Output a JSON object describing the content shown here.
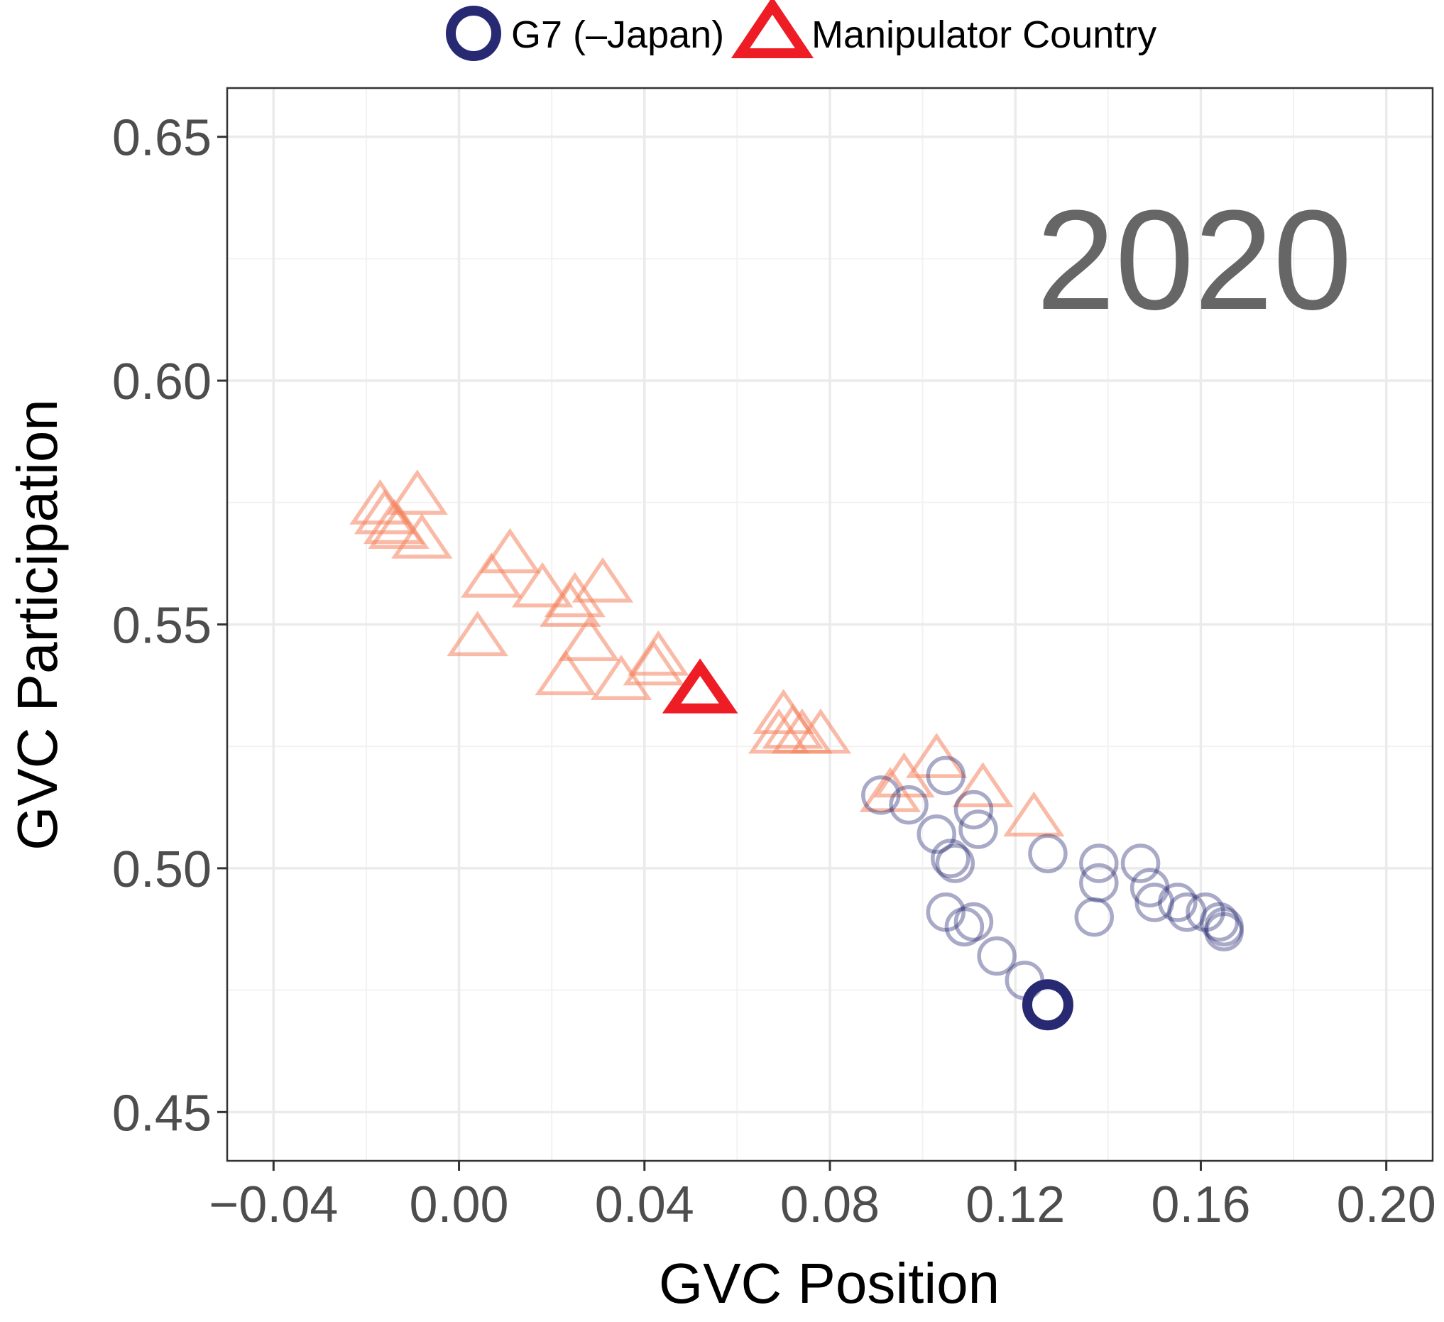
{
  "chart_data": {
    "type": "scatter",
    "title": "",
    "annotation": "2020",
    "xlabel": "GVC Position",
    "ylabel": "GVC Participation",
    "xlim": [
      -0.05,
      0.21
    ],
    "ylim": [
      0.44,
      0.66
    ],
    "x_ticks": [
      -0.04,
      0.0,
      0.04,
      0.08,
      0.12,
      0.16,
      0.2
    ],
    "x_tick_labels": [
      "−0.04",
      "0.00",
      "0.04",
      "0.08",
      "0.12",
      "0.16",
      "0.20"
    ],
    "y_ticks": [
      0.45,
      0.5,
      0.55,
      0.6,
      0.65
    ],
    "y_tick_labels": [
      "0.45",
      "0.50",
      "0.55",
      "0.60",
      "0.65"
    ],
    "grid": true,
    "legend_position": "top",
    "legend": [
      {
        "label": "G7 (–Japan)",
        "marker": "circle",
        "color": "#272a73"
      },
      {
        "label": "Manipulator Country",
        "marker": "triangle",
        "color": "#ee1c25"
      }
    ],
    "series": [
      {
        "name": "Manipulator Country",
        "marker": "triangle",
        "color": "#f4845f",
        "alpha": 0.55,
        "points": [
          [
            -0.017,
            0.574
          ],
          [
            -0.016,
            0.572
          ],
          [
            -0.014,
            0.57
          ],
          [
            -0.013,
            0.569
          ],
          [
            -0.009,
            0.576
          ],
          [
            -0.008,
            0.567
          ],
          [
            0.004,
            0.547
          ],
          [
            0.007,
            0.559
          ],
          [
            0.011,
            0.564
          ],
          [
            0.018,
            0.557
          ],
          [
            0.024,
            0.553
          ],
          [
            0.025,
            0.555
          ],
          [
            0.023,
            0.539
          ],
          [
            0.028,
            0.546
          ],
          [
            0.031,
            0.558
          ],
          [
            0.035,
            0.538
          ],
          [
            0.042,
            0.541
          ],
          [
            0.043,
            0.543
          ],
          [
            0.07,
            0.531
          ],
          [
            0.072,
            0.528
          ],
          [
            0.069,
            0.527
          ],
          [
            0.074,
            0.527
          ],
          [
            0.078,
            0.527
          ],
          [
            0.093,
            0.515
          ],
          [
            0.096,
            0.518
          ],
          [
            0.103,
            0.522
          ],
          [
            0.113,
            0.516
          ],
          [
            0.124,
            0.51
          ]
        ]
      },
      {
        "name": "Manipulator Country (highlighted)",
        "marker": "triangle",
        "color": "#ee1c25",
        "alpha": 1,
        "highlight": true,
        "points": [
          [
            0.052,
            0.536
          ]
        ]
      },
      {
        "name": "G7 (–Japan)",
        "marker": "circle",
        "color": "#272a73",
        "alpha": 0.4,
        "points": [
          [
            0.091,
            0.515
          ],
          [
            0.097,
            0.513
          ],
          [
            0.105,
            0.519
          ],
          [
            0.103,
            0.507
          ],
          [
            0.106,
            0.502
          ],
          [
            0.107,
            0.501
          ],
          [
            0.111,
            0.512
          ],
          [
            0.112,
            0.508
          ],
          [
            0.127,
            0.503
          ],
          [
            0.105,
            0.491
          ],
          [
            0.109,
            0.488
          ],
          [
            0.111,
            0.489
          ],
          [
            0.116,
            0.482
          ],
          [
            0.122,
            0.477
          ],
          [
            0.138,
            0.501
          ],
          [
            0.138,
            0.497
          ],
          [
            0.137,
            0.49
          ],
          [
            0.147,
            0.501
          ],
          [
            0.149,
            0.496
          ],
          [
            0.15,
            0.493
          ],
          [
            0.155,
            0.493
          ],
          [
            0.157,
            0.491
          ],
          [
            0.161,
            0.491
          ],
          [
            0.164,
            0.489
          ],
          [
            0.165,
            0.488
          ],
          [
            0.165,
            0.487
          ]
        ]
      },
      {
        "name": "G7 (–Japan) (highlighted)",
        "marker": "circle",
        "color": "#272a73",
        "alpha": 1,
        "highlight": true,
        "points": [
          [
            0.127,
            0.472
          ]
        ]
      }
    ]
  }
}
